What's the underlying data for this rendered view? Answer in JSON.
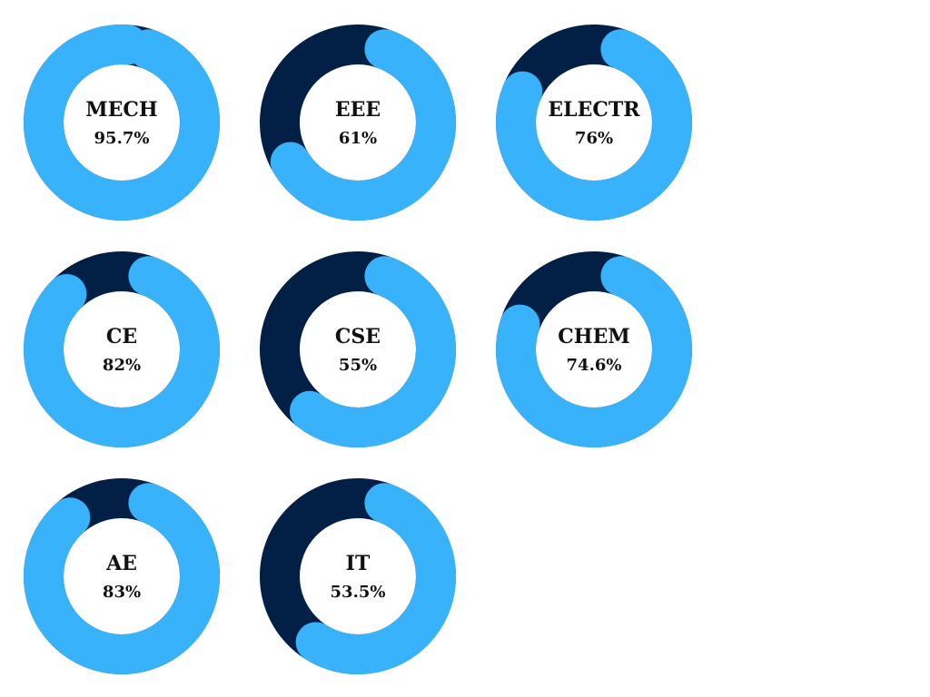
{
  "colors": {
    "track": "#021f45",
    "progress": "#38b3fb",
    "background": "#ffffff"
  },
  "chart_data": {
    "type": "donut",
    "grid": false,
    "legend": "none",
    "items": [
      {
        "name": "MECH",
        "value": 95.7,
        "label": "95.7%"
      },
      {
        "name": "EEE",
        "value": 61,
        "label": "61%"
      },
      {
        "name": "ELECTR",
        "value": 76,
        "label": "76%"
      },
      {
        "name": "CE",
        "value": 82,
        "label": "82%"
      },
      {
        "name": "CSE",
        "value": 55,
        "label": "55%"
      },
      {
        "name": "CHEM",
        "value": 74.6,
        "label": "74.6%"
      },
      {
        "name": "AE",
        "value": 83,
        "label": "83%"
      },
      {
        "name": "IT",
        "value": 53.5,
        "label": "53.5%"
      }
    ]
  }
}
